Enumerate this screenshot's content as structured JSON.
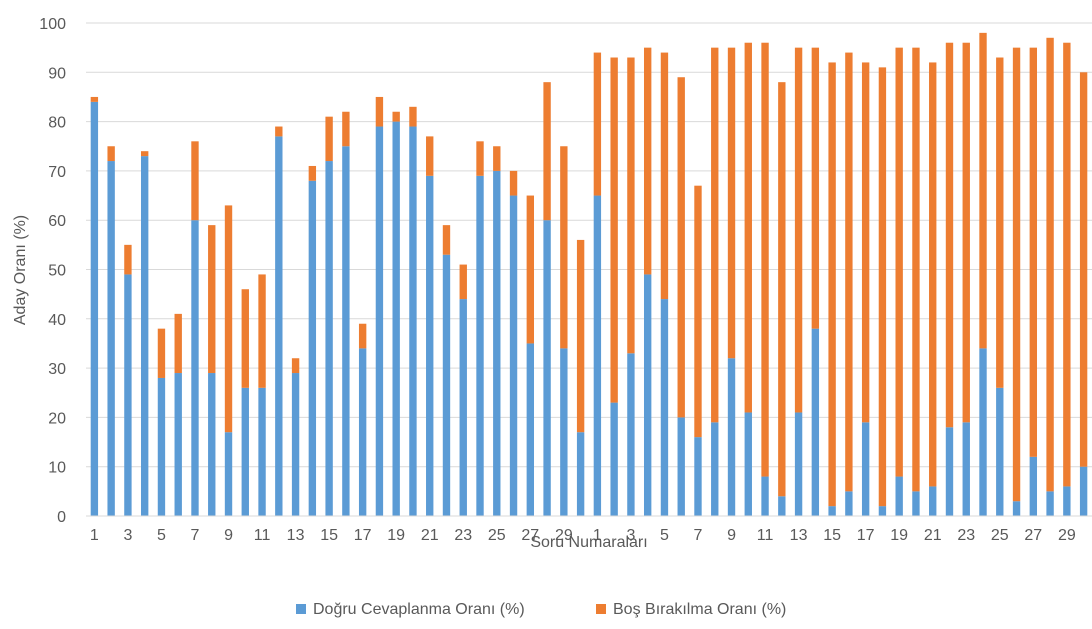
{
  "chart_data": {
    "type": "bar",
    "stacked": true,
    "xlabel": "Soru Numaraları",
    "ylabel": "Aday Oranı (%)",
    "ylim": [
      0,
      100
    ],
    "yticks": [
      0,
      10,
      20,
      30,
      40,
      50,
      60,
      70,
      80,
      90,
      100
    ],
    "grid": "horizontal",
    "legend": "bottom",
    "categories": [
      "1",
      "2",
      "3",
      "4",
      "5",
      "6",
      "7",
      "8",
      "9",
      "10",
      "11",
      "12",
      "13",
      "14",
      "15",
      "16",
      "17",
      "18",
      "19",
      "20",
      "21",
      "22",
      "23",
      "24",
      "25",
      "26",
      "27",
      "28",
      "29",
      "30",
      "1",
      "2",
      "3",
      "4",
      "5",
      "6",
      "7",
      "8",
      "9",
      "10",
      "11",
      "12",
      "13",
      "14",
      "15",
      "16",
      "17",
      "18",
      "19",
      "20",
      "21",
      "22",
      "23",
      "24",
      "25",
      "26",
      "27",
      "28",
      "29",
      "30"
    ],
    "tick_labels": [
      "1",
      "3",
      "5",
      "7",
      "9",
      "11",
      "13",
      "15",
      "17",
      "19",
      "21",
      "23",
      "25",
      "27",
      "29",
      "1",
      "3",
      "5",
      "7",
      "9",
      "11",
      "13",
      "15",
      "17",
      "19",
      "21",
      "23",
      "25",
      "27",
      "29"
    ],
    "series": [
      {
        "name": "Doğru Cevaplanma Oranı (%)",
        "color": "#5B9BD5",
        "values": [
          84,
          72,
          49,
          73,
          28,
          29,
          60,
          29,
          17,
          26,
          26,
          77,
          29,
          68,
          72,
          75,
          34,
          79,
          80,
          79,
          69,
          53,
          44,
          69,
          70,
          65,
          35,
          60,
          34,
          17,
          65,
          23,
          33,
          49,
          44,
          20,
          16,
          19,
          32,
          21,
          8,
          4,
          21,
          38,
          2,
          5,
          19,
          2,
          8,
          5,
          6,
          18,
          19,
          34,
          26,
          3,
          12,
          5,
          6,
          10
        ]
      },
      {
        "name": "Boş Bırakılma Oranı (%)",
        "color": "#ED7D31",
        "values": [
          1,
          3,
          6,
          1,
          10,
          12,
          16,
          30,
          46,
          20,
          23,
          2,
          3,
          3,
          9,
          7,
          5,
          6,
          2,
          4,
          8,
          6,
          7,
          7,
          5,
          5,
          30,
          28,
          41,
          39,
          29,
          70,
          60,
          46,
          50,
          69,
          51,
          76,
          63,
          75,
          88,
          84,
          74,
          57,
          90,
          89,
          73,
          89,
          87,
          90,
          86,
          78,
          77,
          64,
          67,
          92,
          83,
          92,
          90,
          80
        ]
      }
    ]
  }
}
